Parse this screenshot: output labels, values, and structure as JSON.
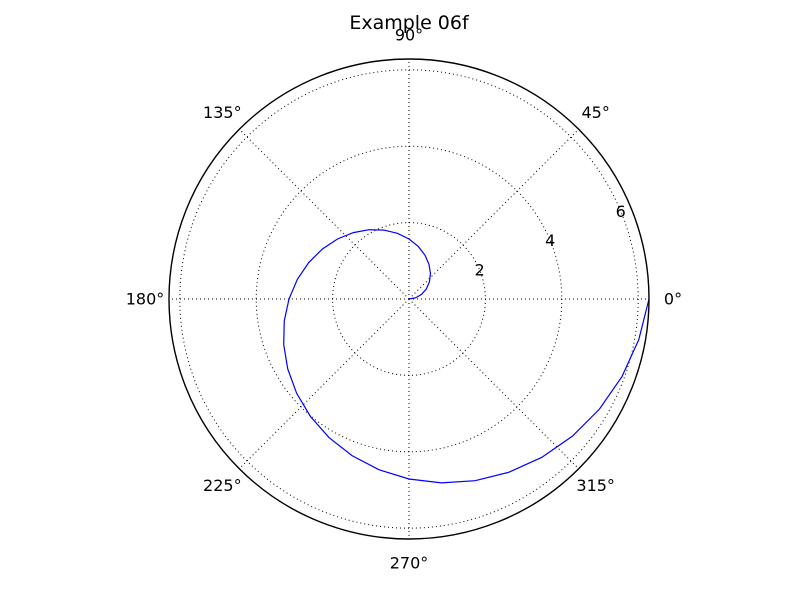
{
  "chart_data": {
    "type": "line",
    "projection": "polar",
    "title": "Example 06f",
    "theta_tick_labels": [
      "0°",
      "45°",
      "90°",
      "135°",
      "180°",
      "225°",
      "270°",
      "315°"
    ],
    "theta_ticks_deg": [
      0,
      45,
      90,
      135,
      180,
      225,
      270,
      315
    ],
    "r_ticks": [
      2,
      4,
      6
    ],
    "r_tick_labels": [
      "2",
      "4",
      "6"
    ],
    "rlim": [
      0,
      6.283
    ],
    "grid": true,
    "series": [
      {
        "color": "#0000ff",
        "theta_deg": [
          0,
          10,
          20,
          30,
          40,
          50,
          60,
          70,
          80,
          90,
          100,
          110,
          120,
          130,
          140,
          150,
          160,
          170,
          180,
          190,
          200,
          210,
          220,
          230,
          240,
          250,
          260,
          270,
          280,
          290,
          300,
          310,
          320,
          330,
          340,
          350,
          360
        ],
        "r": [
          0,
          0.1745,
          0.3491,
          0.5236,
          0.6981,
          0.8727,
          1.0472,
          1.2217,
          1.3963,
          1.5708,
          1.7453,
          1.9199,
          2.0944,
          2.2689,
          2.4435,
          2.618,
          2.7925,
          2.9671,
          3.1416,
          3.3161,
          3.4907,
          3.6652,
          3.8397,
          4.0143,
          4.1888,
          4.3633,
          4.5379,
          4.7124,
          4.8869,
          5.0615,
          5.236,
          5.4105,
          5.5851,
          5.7596,
          5.9341,
          6.1087,
          6.2832
        ]
      }
    ]
  }
}
